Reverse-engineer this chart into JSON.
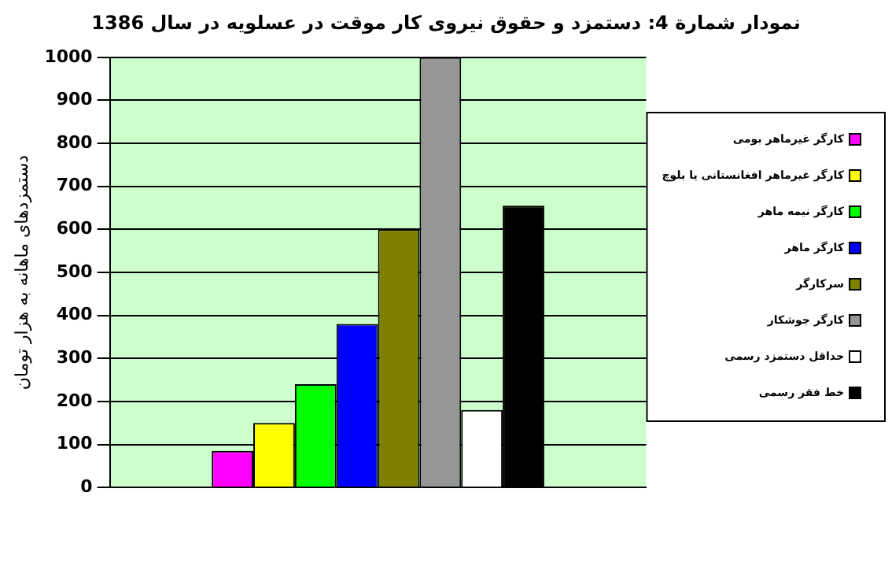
{
  "chart_data": {
    "type": "bar",
    "title": "نمودار شمارة 4: دستمزد و حقوق نیروی کار موقت در عسلویه در سال 1386",
    "ylabel": "دستمزدهای ماهانه به هزار تومان",
    "categories": [
      null
    ],
    "series": [
      {
        "name": "کارگر غیرماهر بومی",
        "color": "#ff00ff",
        "values": [
          85
        ]
      },
      {
        "name": "کارگر غیرماهر افغانستانی یا بلوچ",
        "color": "#ffff00",
        "values": [
          150
        ]
      },
      {
        "name": "کارگر نیمه ماهر",
        "color": "#00ff00",
        "values": [
          240
        ]
      },
      {
        "name": "کارگر ماهر",
        "color": "#0000ff",
        "values": [
          380
        ]
      },
      {
        "name": "سرکارگر",
        "color": "#808000",
        "values": [
          600
        ]
      },
      {
        "name": "کارگر جوشکار",
        "color": "#969696",
        "values": [
          1000
        ]
      },
      {
        "name": "حداقل دستمزد رسمی",
        "color": "#ffffff",
        "values": [
          180
        ]
      },
      {
        "name": "خط فقر رسمی",
        "color": "#000000",
        "values": [
          655
        ]
      }
    ],
    "ylim": [
      0,
      1000
    ],
    "yticks": [
      0,
      100,
      200,
      300,
      400,
      500,
      600,
      700,
      800,
      900,
      1000
    ],
    "grid": "y",
    "legend": "right"
  }
}
